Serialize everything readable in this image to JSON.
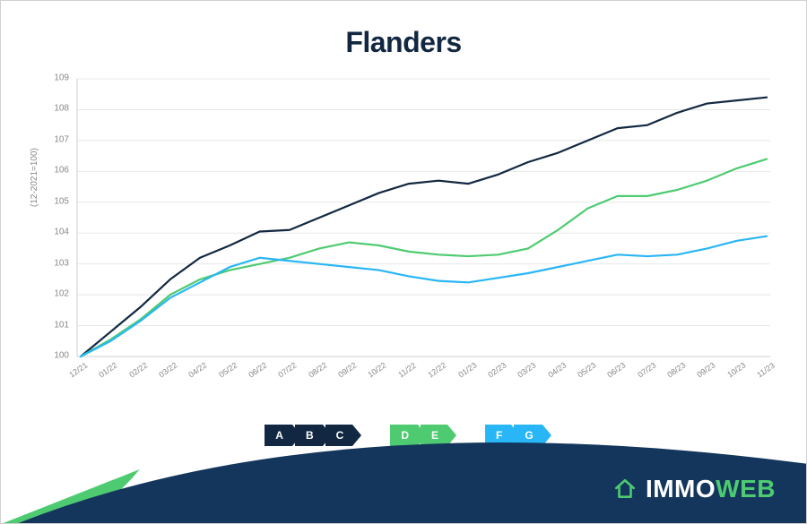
{
  "chart": {
    "type": "line",
    "title": "Flanders",
    "title_fontsize": 32,
    "title_color": "#122842",
    "background_color": "#ffffff",
    "grid_color": "#e8e8e8",
    "axis_color": "#cfcfcf",
    "tick_color": "#888888",
    "tick_fontsize": 10,
    "ylabel": "(12-2021=100)",
    "ylim": [
      100,
      109
    ],
    "ytick_step": 1,
    "xlabels": [
      "12/21",
      "01/22",
      "02/22",
      "03/22",
      "04/22",
      "05/22",
      "06/22",
      "07/22",
      "08/22",
      "09/22",
      "10/22",
      "11/22",
      "12/22",
      "01/23",
      "02/23",
      "03/23",
      "04/23",
      "05/23",
      "06/23",
      "07/23",
      "08/23",
      "09/23",
      "10/23",
      "11/23"
    ],
    "line_width": 2.2,
    "series": [
      {
        "name": "ABC",
        "color": "#122842",
        "values": [
          100.0,
          100.8,
          101.6,
          102.5,
          103.2,
          103.6,
          104.05,
          104.1,
          104.5,
          104.9,
          105.3,
          105.6,
          105.7,
          105.6,
          105.9,
          106.3,
          106.6,
          107.0,
          107.4,
          107.5,
          107.9,
          108.2,
          108.3,
          108.4
        ]
      },
      {
        "name": "DE",
        "color": "#4ecb71",
        "values": [
          100.0,
          100.55,
          101.2,
          102.0,
          102.5,
          102.8,
          103.0,
          103.2,
          103.5,
          103.7,
          103.6,
          103.4,
          103.3,
          103.25,
          103.3,
          103.5,
          104.1,
          104.8,
          105.2,
          105.2,
          105.4,
          105.7,
          106.1,
          106.4
        ]
      },
      {
        "name": "FG",
        "color": "#29b6f6",
        "values": [
          100.0,
          100.5,
          101.15,
          101.9,
          102.4,
          102.9,
          103.2,
          103.1,
          103.0,
          102.9,
          102.8,
          102.6,
          102.45,
          102.4,
          102.55,
          102.7,
          102.9,
          103.1,
          103.3,
          103.25,
          103.3,
          103.5,
          103.75,
          103.9
        ]
      }
    ]
  },
  "legend": {
    "groups": [
      {
        "color": "#122842",
        "labels": [
          "A",
          "B",
          "C"
        ]
      },
      {
        "color": "#4ecb71",
        "labels": [
          "D",
          "E"
        ]
      },
      {
        "color": "#29b6f6",
        "labels": [
          "F",
          "G"
        ]
      }
    ]
  },
  "brand": {
    "name_part1": "IMMO",
    "name_part2": "WEB",
    "text_color": "#ffffff",
    "accent_color": "#4ecb71",
    "curve_color": "#14365c",
    "leaf_color": "#4ecb71"
  }
}
